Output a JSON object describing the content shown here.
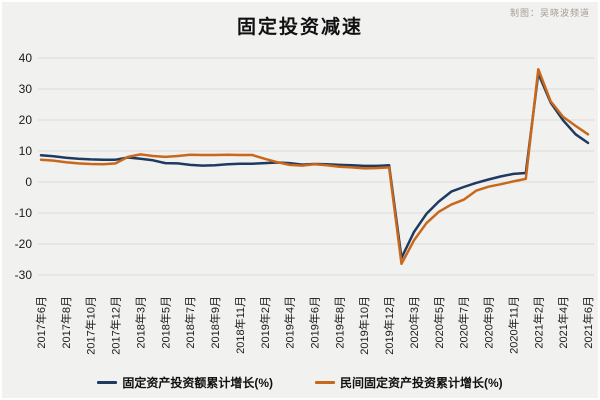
{
  "header": {
    "title": "固定投资减速",
    "credit": "制图：吴晓波频道"
  },
  "colors": {
    "background": "#f1f1f0",
    "frame_border": "#ffffff",
    "gridline": "#dcdcdc",
    "axis_text": "#1a1a1a",
    "credit_text": "#a59c93",
    "series_fai": "#1f3a60",
    "series_private": "#c8681d"
  },
  "chart_data": {
    "type": "line",
    "title": "固定投资减速",
    "xlabel": "",
    "ylabel": "",
    "ylim": [
      -30,
      40
    ],
    "yticks": [
      40,
      30,
      20,
      10,
      0,
      -10,
      -20,
      -30
    ],
    "grid": "horizontal",
    "legend_position": "bottom",
    "x_months": [
      "2017年6月",
      "2017年7月",
      "2017年8月",
      "2017年9月",
      "2017年10月",
      "2017年11月",
      "2017年12月",
      "2018年2月",
      "2018年3月",
      "2018年4月",
      "2018年5月",
      "2018年6月",
      "2018年7月",
      "2018年8月",
      "2018年9月",
      "2018年10月",
      "2018年11月",
      "2018年12月",
      "2019年2月",
      "2019年3月",
      "2019年4月",
      "2019年5月",
      "2019年6月",
      "2019年7月",
      "2019年8月",
      "2019年9月",
      "2019年10月",
      "2019年11月",
      "2019年12月",
      "2020年2月",
      "2020年3月",
      "2020年4月",
      "2020年5月",
      "2020年6月",
      "2020年7月",
      "2020年8月",
      "2020年9月",
      "2020年10月",
      "2020年11月",
      "2020年12月",
      "2021年2月",
      "2021年3月",
      "2021年4月",
      "2021年5月",
      "2021年6月"
    ],
    "tick_labels": [
      "2017年6月",
      "2017年8月",
      "2017年10月",
      "2017年12月",
      "2018年3月",
      "2018年5月",
      "2018年7月",
      "2018年9月",
      "2018年11月",
      "2019年2月",
      "2019年4月",
      "2019年6月",
      "2019年8月",
      "2019年10月",
      "2019年12月",
      "2020年3月",
      "2020年5月",
      "2020年7月",
      "2020年9月",
      "2020年11月",
      "2021年2月",
      "2021年4月",
      "2021年6月"
    ],
    "tick_every": 2,
    "series": [
      {
        "name": "固定资产投资额累计增长(%)",
        "color": "#1f3a60",
        "values": [
          8.6,
          8.3,
          7.8,
          7.5,
          7.3,
          7.2,
          7.2,
          7.9,
          7.5,
          7.0,
          6.1,
          6.0,
          5.5,
          5.3,
          5.4,
          5.7,
          5.9,
          5.9,
          6.1,
          6.3,
          6.1,
          5.6,
          5.8,
          5.7,
          5.5,
          5.4,
          5.2,
          5.2,
          5.4,
          -24.5,
          -16.1,
          -10.3,
          -6.3,
          -3.1,
          -1.6,
          -0.3,
          0.8,
          1.8,
          2.6,
          2.9,
          35.0,
          25.6,
          19.9,
          15.4,
          12.6
        ]
      },
      {
        "name": "民间固定资产投资累计增长(%)",
        "color": "#c8681d",
        "values": [
          7.2,
          6.9,
          6.4,
          6.0,
          5.8,
          5.7,
          6.0,
          8.1,
          8.9,
          8.4,
          8.1,
          8.4,
          8.8,
          8.7,
          8.7,
          8.8,
          8.7,
          8.7,
          7.5,
          6.4,
          5.5,
          5.3,
          5.7,
          5.4,
          4.9,
          4.7,
          4.4,
          4.5,
          4.7,
          -26.4,
          -18.8,
          -13.3,
          -9.6,
          -7.3,
          -5.7,
          -2.8,
          -1.5,
          -0.7,
          0.2,
          1.0,
          36.4,
          26.0,
          21.0,
          18.1,
          15.4
        ]
      }
    ]
  }
}
